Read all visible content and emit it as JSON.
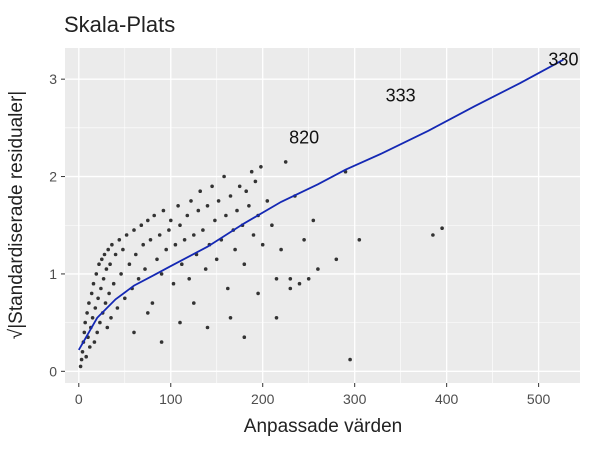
{
  "chart_data": {
    "type": "scatter",
    "title": "Skala-Plats",
    "xlabel": "Anpassade värden",
    "ylabel": "√|Standardiserade residualer|",
    "xlim": [
      -15,
      545
    ],
    "ylim": [
      -0.12,
      3.32
    ],
    "x_ticks": [
      0,
      100,
      200,
      300,
      400,
      500
    ],
    "y_ticks": [
      0,
      1,
      2,
      3
    ],
    "grid": true,
    "background": "#ebebeb",
    "grid_color": "#ffffff",
    "point_color": "#333333",
    "line_color": "#1428b4",
    "points": [
      [
        2,
        0.05
      ],
      [
        3,
        0.12
      ],
      [
        4,
        0.2
      ],
      [
        5,
        0.3
      ],
      [
        6,
        0.4
      ],
      [
        7,
        0.5
      ],
      [
        8,
        0.15
      ],
      [
        9,
        0.6
      ],
      [
        10,
        0.35
      ],
      [
        11,
        0.7
      ],
      [
        12,
        0.25
      ],
      [
        13,
        0.45
      ],
      [
        14,
        0.8
      ],
      [
        15,
        0.55
      ],
      [
        16,
        0.9
      ],
      [
        17,
        0.3
      ],
      [
        18,
        0.65
      ],
      [
        19,
        1.0
      ],
      [
        20,
        0.4
      ],
      [
        21,
        0.75
      ],
      [
        22,
        1.1
      ],
      [
        23,
        0.5
      ],
      [
        24,
        0.85
      ],
      [
        25,
        1.15
      ],
      [
        26,
        0.6
      ],
      [
        27,
        0.95
      ],
      [
        28,
        1.2
      ],
      [
        29,
        0.7
      ],
      [
        30,
        1.05
      ],
      [
        31,
        0.45
      ],
      [
        32,
        1.25
      ],
      [
        33,
        0.8
      ],
      [
        34,
        1.1
      ],
      [
        35,
        0.55
      ],
      [
        36,
        1.3
      ],
      [
        38,
        0.9
      ],
      [
        40,
        1.2
      ],
      [
        42,
        0.65
      ],
      [
        44,
        1.35
      ],
      [
        46,
        1.0
      ],
      [
        48,
        1.25
      ],
      [
        50,
        0.75
      ],
      [
        52,
        1.4
      ],
      [
        55,
        1.1
      ],
      [
        58,
        0.85
      ],
      [
        60,
        1.45
      ],
      [
        62,
        1.2
      ],
      [
        65,
        0.95
      ],
      [
        68,
        1.5
      ],
      [
        70,
        1.3
      ],
      [
        72,
        1.05
      ],
      [
        75,
        1.55
      ],
      [
        78,
        1.35
      ],
      [
        80,
        0.7
      ],
      [
        82,
        1.6
      ],
      [
        85,
        1.15
      ],
      [
        88,
        1.4
      ],
      [
        90,
        1.0
      ],
      [
        92,
        1.65
      ],
      [
        95,
        1.25
      ],
      [
        98,
        1.45
      ],
      [
        100,
        1.55
      ],
      [
        103,
        0.9
      ],
      [
        105,
        1.3
      ],
      [
        108,
        1.7
      ],
      [
        110,
        1.5
      ],
      [
        112,
        1.1
      ],
      [
        115,
        1.35
      ],
      [
        118,
        1.6
      ],
      [
        120,
        0.95
      ],
      [
        122,
        1.75
      ],
      [
        125,
        1.4
      ],
      [
        128,
        1.2
      ],
      [
        130,
        1.65
      ],
      [
        132,
        1.85
      ],
      [
        135,
        1.45
      ],
      [
        138,
        1.05
      ],
      [
        140,
        1.7
      ],
      [
        142,
        1.3
      ],
      [
        145,
        1.9
      ],
      [
        148,
        1.55
      ],
      [
        150,
        1.15
      ],
      [
        152,
        1.75
      ],
      [
        155,
        1.35
      ],
      [
        158,
        2.0
      ],
      [
        160,
        1.6
      ],
      [
        162,
        0.85
      ],
      [
        165,
        1.8
      ],
      [
        168,
        1.45
      ],
      [
        170,
        1.25
      ],
      [
        172,
        1.65
      ],
      [
        175,
        1.9
      ],
      [
        178,
        1.5
      ],
      [
        180,
        1.1
      ],
      [
        182,
        1.85
      ],
      [
        185,
        1.7
      ],
      [
        188,
        2.05
      ],
      [
        190,
        1.4
      ],
      [
        192,
        1.95
      ],
      [
        195,
        1.6
      ],
      [
        198,
        2.1
      ],
      [
        200,
        1.3
      ],
      [
        205,
        1.75
      ],
      [
        210,
        1.5
      ],
      [
        215,
        0.95
      ],
      [
        220,
        1.25
      ],
      [
        225,
        2.15
      ],
      [
        230,
        0.85
      ],
      [
        235,
        1.8
      ],
      [
        240,
        0.9
      ],
      [
        245,
        1.35
      ],
      [
        250,
        0.95
      ],
      [
        255,
        1.55
      ],
      [
        290,
        2.05
      ],
      [
        295,
        0.12
      ],
      [
        385,
        1.4
      ],
      [
        395,
        1.47
      ],
      [
        60,
        0.4
      ],
      [
        75,
        0.6
      ],
      [
        90,
        0.3
      ],
      [
        110,
        0.5
      ],
      [
        125,
        0.7
      ],
      [
        140,
        0.45
      ],
      [
        165,
        0.55
      ],
      [
        180,
        0.35
      ],
      [
        195,
        0.8
      ],
      [
        215,
        0.55
      ],
      [
        230,
        0.95
      ],
      [
        260,
        1.05
      ],
      [
        280,
        1.15
      ],
      [
        305,
        1.35
      ]
    ],
    "loess_line": [
      [
        0,
        0.22
      ],
      [
        20,
        0.55
      ],
      [
        40,
        0.74
      ],
      [
        60,
        0.88
      ],
      [
        80,
        0.98
      ],
      [
        100,
        1.08
      ],
      [
        140,
        1.28
      ],
      [
        180,
        1.52
      ],
      [
        220,
        1.74
      ],
      [
        260,
        1.92
      ],
      [
        290,
        2.07
      ],
      [
        330,
        2.24
      ],
      [
        380,
        2.47
      ],
      [
        430,
        2.72
      ],
      [
        480,
        2.96
      ],
      [
        527,
        3.2
      ]
    ],
    "annotations": [
      {
        "label": "820",
        "x": 245,
        "y": 2.4
      },
      {
        "label": "333",
        "x": 350,
        "y": 2.83
      },
      {
        "label": "330",
        "x": 527,
        "y": 3.2
      }
    ]
  }
}
